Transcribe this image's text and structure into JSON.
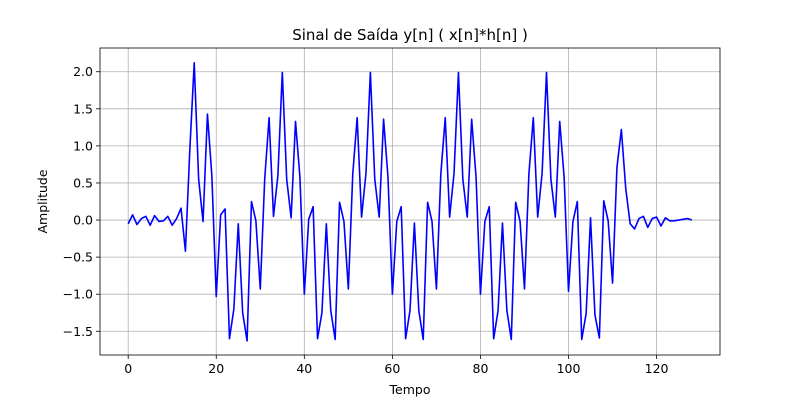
{
  "chart_data": {
    "type": "line",
    "title": "Sinal de Saída y[n] ( x[n]*h[n] )",
    "xlabel": "Tempo",
    "ylabel": "Amplitude",
    "xlim": [
      -6.4,
      134.4
    ],
    "ylim": [
      -1.82,
      2.32
    ],
    "xticks": [
      0,
      20,
      40,
      60,
      80,
      100,
      120
    ],
    "yticks": [
      -1.5,
      -1.0,
      -0.5,
      0.0,
      0.5,
      1.0,
      1.5,
      2.0
    ],
    "xtick_labels": [
      "0",
      "20",
      "40",
      "60",
      "80",
      "100",
      "120"
    ],
    "ytick_labels": [
      "−1.5",
      "−1.0",
      "−0.5",
      "0.0",
      "0.5",
      "1.0",
      "1.5",
      "2.0"
    ],
    "grid": true,
    "line_color": "#0000ff",
    "series": [
      {
        "x": [
          0,
          1,
          2,
          3,
          4,
          5,
          6,
          7,
          8,
          9,
          10,
          11,
          12,
          13,
          14,
          15,
          16,
          17,
          18,
          19,
          20,
          21,
          22,
          23,
          24,
          25,
          26,
          27,
          28,
          29,
          30,
          31,
          32,
          33,
          34,
          35,
          36,
          37,
          38,
          39,
          40,
          41,
          42,
          43,
          44,
          45,
          46,
          47,
          48,
          49,
          50,
          51,
          52,
          53,
          54,
          55,
          56,
          57,
          58,
          59,
          60,
          61,
          62,
          63,
          64,
          65,
          66,
          67,
          68,
          69,
          70,
          71,
          72,
          73,
          74,
          75,
          76,
          77,
          78,
          79,
          80,
          81,
          82,
          83,
          84,
          85,
          86,
          87,
          88,
          89,
          90,
          91,
          92,
          93,
          94,
          95,
          96,
          97,
          98,
          99,
          100,
          101,
          102,
          103,
          104,
          105,
          106,
          107,
          108,
          109,
          110,
          111,
          112,
          113,
          114,
          115,
          116,
          117,
          118,
          119,
          120,
          121,
          122,
          123,
          124,
          125,
          126,
          127,
          128
        ],
        "values": [
          -0.05,
          0.07,
          -0.06,
          0.02,
          0.05,
          -0.07,
          0.06,
          -0.02,
          -0.01,
          0.05,
          -0.07,
          0.02,
          0.16,
          -0.42,
          0.95,
          2.12,
          0.55,
          -0.02,
          1.43,
          0.6,
          -1.03,
          0.07,
          0.15,
          -1.6,
          -1.2,
          -0.05,
          -1.25,
          -1.63,
          0.25,
          -0.01,
          -0.93,
          0.55,
          1.38,
          0.05,
          0.6,
          1.99,
          0.55,
          0.03,
          1.33,
          0.58,
          -1.0,
          0.01,
          0.18,
          -1.6,
          -1.25,
          -0.05,
          -1.22,
          -1.61,
          0.24,
          -0.02,
          -0.93,
          0.62,
          1.38,
          0.04,
          0.63,
          1.99,
          0.55,
          0.04,
          1.36,
          0.58,
          -1.0,
          -0.02,
          0.18,
          -1.6,
          -1.22,
          -0.04,
          -1.22,
          -1.61,
          0.24,
          -0.02,
          -0.93,
          0.62,
          1.38,
          0.04,
          0.63,
          1.99,
          0.55,
          0.04,
          1.36,
          0.58,
          -1.0,
          -0.02,
          0.18,
          -1.6,
          -1.22,
          -0.04,
          -1.22,
          -1.61,
          0.24,
          -0.02,
          -0.93,
          0.62,
          1.38,
          0.04,
          0.63,
          1.99,
          0.55,
          0.04,
          1.33,
          0.58,
          -0.96,
          -0.02,
          0.25,
          -1.61,
          -1.26,
          0.03,
          -1.28,
          -1.59,
          0.26,
          -0.01,
          -0.85,
          0.71,
          1.22,
          0.42,
          -0.05,
          -0.12,
          0.02,
          0.05,
          -0.1,
          0.02,
          0.04,
          -0.08,
          0.03,
          -0.01,
          -0.01,
          0.0,
          0.01,
          0.02,
          0.0
        ]
      }
    ]
  }
}
